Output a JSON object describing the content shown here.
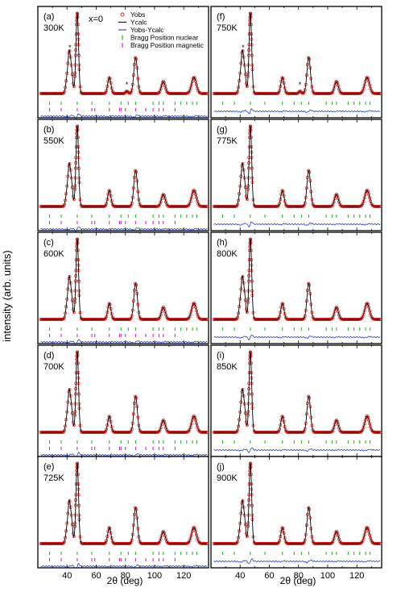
{
  "figure": {
    "ylabel": "intensity (arb. units)",
    "xlabel": "2θ (deg)",
    "composition_label": "x=0",
    "x_ticks": [
      40,
      60,
      80,
      100,
      120
    ],
    "xlim": [
      20,
      137
    ],
    "legend": [
      {
        "label": "Yobs",
        "color": "#e0201b",
        "marker": "open-circle"
      },
      {
        "label": "Ycalc",
        "color": "#000000",
        "marker": "line"
      },
      {
        "label": "Yobs-Ycalc",
        "color": "#1f3fcf",
        "marker": "line"
      },
      {
        "label": "Bragg Position nuclear",
        "color": "#2db82d",
        "marker": "tick"
      },
      {
        "label": "Bragg Position magnetic",
        "color": "#e020c8",
        "marker": "tick"
      }
    ]
  },
  "chart_data": {
    "type": "line",
    "description_kind": "multi-panel powder diffraction refinement",
    "peaks_2theta": [
      40,
      41.5,
      43,
      47,
      69,
      87,
      106,
      127
    ],
    "peaks_relative_intensity": [
      0.18,
      0.42,
      0.28,
      1.0,
      0.2,
      0.45,
      0.15,
      0.2
    ],
    "impurity_peaks": [
      42,
      81
    ],
    "nuclear_bragg_positions": [
      28,
      36,
      47,
      57,
      69,
      77,
      82,
      87,
      99,
      103,
      106,
      114,
      118,
      122,
      126,
      129
    ],
    "magnetic_bragg_positions": [
      28,
      36,
      47,
      57,
      59,
      69,
      76,
      77,
      80,
      87,
      94,
      99,
      103,
      106,
      114
    ],
    "panels": [
      {
        "id": "(a)",
        "temperature": "300K",
        "magnetic": true,
        "star": true
      },
      {
        "id": "(b)",
        "temperature": "550K",
        "magnetic": true,
        "star": false
      },
      {
        "id": "(c)",
        "temperature": "600K",
        "magnetic": true,
        "star": false
      },
      {
        "id": "(d)",
        "temperature": "700K",
        "magnetic": true,
        "star": false
      },
      {
        "id": "(e)",
        "temperature": "725K",
        "magnetic": true,
        "star": false
      },
      {
        "id": "(f)",
        "temperature": "750K",
        "magnetic": false,
        "star": true
      },
      {
        "id": "(g)",
        "temperature": "775K",
        "magnetic": false,
        "star": false
      },
      {
        "id": "(h)",
        "temperature": "800K",
        "magnetic": false,
        "star": false
      },
      {
        "id": "(i)",
        "temperature": "850K",
        "magnetic": false,
        "star": false
      },
      {
        "id": "(j)",
        "temperature": "900K",
        "magnetic": false,
        "star": false
      }
    ]
  }
}
